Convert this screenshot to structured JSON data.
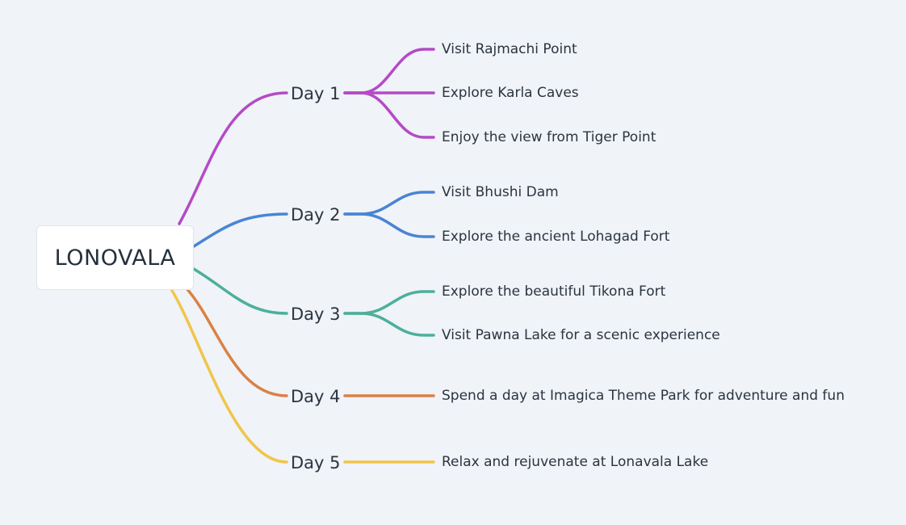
{
  "root": {
    "label": "LONOVALA"
  },
  "branches": [
    {
      "label": "Day 1",
      "color": "#b44ac6",
      "children": [
        "Visit Rajmachi Point",
        "Explore Karla Caves",
        "Enjoy the view from Tiger Point"
      ]
    },
    {
      "label": "Day 2",
      "color": "#4a84d4",
      "children": [
        "Visit Bhushi Dam",
        "Explore the ancient Lohagad Fort"
      ]
    },
    {
      "label": "Day 3",
      "color": "#4caf9c",
      "children": [
        "Explore the beautiful Tikona Fort",
        "Visit Pawna Lake for a scenic experience"
      ]
    },
    {
      "label": "Day 4",
      "color": "#db8144",
      "children": [
        "Spend a day at Imagica Theme Park for adventure and fun"
      ]
    },
    {
      "label": "Day 5",
      "color": "#efc64a",
      "children": [
        "Relax and rejuvenate at Lonavala Lake"
      ]
    }
  ]
}
